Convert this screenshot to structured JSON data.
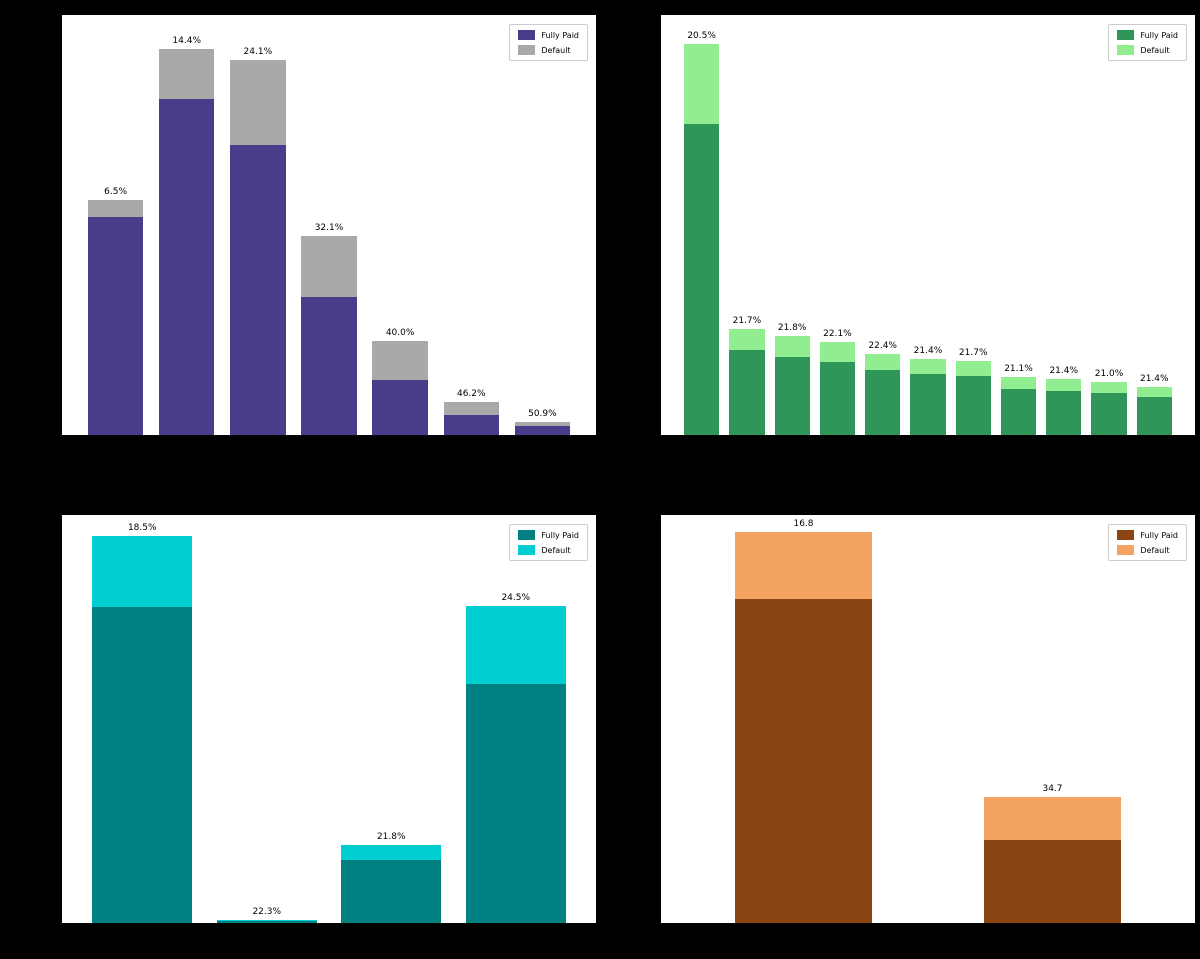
{
  "figure": {
    "background": "#000000",
    "panel_background": "#ffffff",
    "layout": "2x2 grid of stacked bar charts",
    "note_text_visible": "only bar annotation labels and legends are visible; titles and axis tick labels are not readable against the dark background"
  },
  "chart_data": [
    {
      "type": "bar",
      "stacked": true,
      "position": "top-left",
      "title": "",
      "legend_position": "upper right",
      "grid": false,
      "bar_width_pct": 78,
      "bar_labels": [
        "6.5%",
        "14.4%",
        "24.1%",
        "32.1%",
        "40.0%",
        "46.2%",
        "50.9%"
      ],
      "categories": [
        "",
        "",
        "",
        "",
        "",
        "",
        ""
      ],
      "series": [
        {
          "name": "Fully Paid",
          "color": "#483D8B",
          "values_rel": [
            51.9,
            80.0,
            69.0,
            32.9,
            13.1,
            4.8,
            2.1
          ]
        },
        {
          "name": "Default",
          "color": "#A9A9A9",
          "values_rel": [
            4.0,
            11.9,
            20.2,
            14.5,
            9.3,
            3.1,
            1.0
          ]
        }
      ]
    },
    {
      "type": "bar",
      "stacked": true,
      "position": "top-right",
      "title": "",
      "legend_position": "upper right",
      "grid": false,
      "bar_width_pct": 78,
      "bar_labels": [
        "20.5%",
        "21.7%",
        "21.8%",
        "22.1%",
        "22.4%",
        "21.4%",
        "21.7%",
        "21.1%",
        "21.4%",
        "21.0%",
        "21.4%"
      ],
      "categories": [
        "",
        "",
        "",
        "",
        "",
        "",
        "",
        "",
        "",
        "",
        ""
      ],
      "series": [
        {
          "name": "Fully Paid",
          "color": "#2E9658",
          "values_rel": [
            74.0,
            20.2,
            18.6,
            17.4,
            15.5,
            14.5,
            14.0,
            11.0,
            10.5,
            10.0,
            9.0
          ]
        },
        {
          "name": "Default",
          "color": "#90EE90",
          "values_rel": [
            19.0,
            5.0,
            5.0,
            4.8,
            3.8,
            3.6,
            3.6,
            2.9,
            2.9,
            2.6,
            2.4
          ]
        }
      ]
    },
    {
      "type": "bar",
      "stacked": true,
      "position": "bottom-left",
      "title": "",
      "legend_position": "upper right",
      "grid": false,
      "bar_width_pct": 80,
      "bar_labels": [
        "18.5%",
        "22.3%",
        "21.8%",
        "24.5%"
      ],
      "categories": [
        "",
        "",
        "",
        ""
      ],
      "series": [
        {
          "name": "Fully Paid",
          "color": "#008080",
          "values_rel": [
            77.5,
            0.5,
            15.4,
            58.6
          ]
        },
        {
          "name": "Default",
          "color": "#00CED1",
          "values_rel": [
            17.4,
            0.3,
            3.8,
            19.1
          ]
        }
      ]
    },
    {
      "type": "bar",
      "stacked": true,
      "position": "bottom-right",
      "title": "",
      "legend_position": "upper right",
      "grid": false,
      "bar_width_pct": 55,
      "bar_labels": [
        "16.8",
        "34.7"
      ],
      "categories": [
        "",
        ""
      ],
      "series": [
        {
          "name": "Fully Paid",
          "color": "#8B4513",
          "values_rel": [
            79.4,
            20.3
          ]
        },
        {
          "name": "Default",
          "color": "#F4A460",
          "values_rel": [
            16.4,
            10.5
          ]
        }
      ]
    }
  ]
}
